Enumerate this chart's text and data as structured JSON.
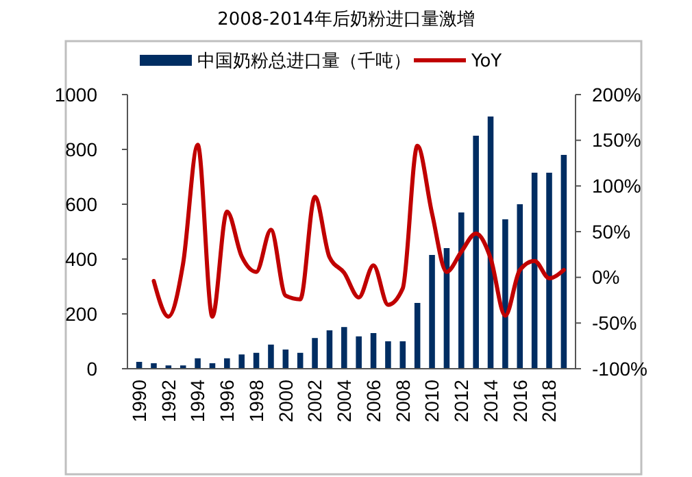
{
  "chart_data": {
    "type": "bar",
    "title": "2008-2014年后奶粉进口量激增",
    "categories": [
      "1990",
      null,
      "1992",
      null,
      "1994",
      null,
      "1996",
      null,
      "1998",
      null,
      "2000",
      null,
      "2002",
      null,
      "2004",
      null,
      "2006",
      null,
      "2008",
      null,
      "2010",
      null,
      "2012",
      null,
      "2014",
      null,
      "2016",
      null,
      "2018",
      null
    ],
    "series": [
      {
        "name": "中国奶粉总进口量（千吨）",
        "color": "#002d62",
        "values": [
          25,
          20,
          12,
          12,
          38,
          20,
          38,
          52,
          58,
          88,
          70,
          58,
          112,
          140,
          152,
          118,
          130,
          100,
          100,
          240,
          415,
          440,
          570,
          850,
          920,
          545,
          600,
          715,
          715,
          780
        ]
      },
      {
        "name": "YoY",
        "type": "line",
        "axis": "y2",
        "color": "#c00000",
        "values": [
          null,
          -4,
          -43,
          15,
          145,
          -43,
          72,
          23,
          6,
          52,
          -20,
          -24,
          88,
          22,
          5,
          -22,
          13,
          -30,
          -12,
          144,
          70,
          6,
          28,
          48,
          21,
          -42,
          8,
          18,
          -1,
          8
        ]
      }
    ],
    "ylim": [
      0,
      1000
    ],
    "yticks": [
      0,
      200,
      400,
      600,
      800,
      1000
    ],
    "y2lim": [
      -100,
      200
    ],
    "y2ticks": [
      {
        "value": -100,
        "label": "-100%"
      },
      {
        "value": -50,
        "label": "-50%"
      },
      {
        "value": 0,
        "label": "0%"
      },
      {
        "value": 50,
        "label": "50%"
      },
      {
        "value": 100,
        "label": "100%"
      },
      {
        "value": 150,
        "label": "150%"
      },
      {
        "value": 200,
        "label": "200%"
      }
    ],
    "legend": "top",
    "grid": false
  }
}
